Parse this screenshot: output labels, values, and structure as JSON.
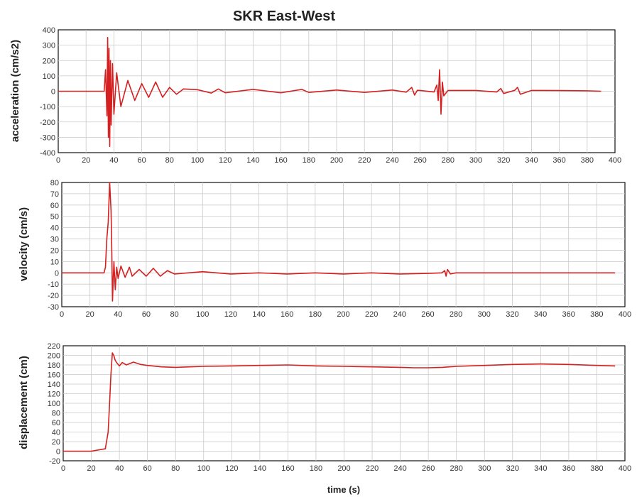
{
  "title": "SKR East-West",
  "colors": {
    "trace": "#d42020",
    "frame": "#111111",
    "grid": "#c9c9c9"
  },
  "chart_data": [
    {
      "type": "line",
      "ylabel": "acceleration (cm/s2)",
      "xlabel": "",
      "xlim": [
        0,
        400
      ],
      "ylim": [
        -400,
        400
      ],
      "xticks": [
        0,
        20,
        40,
        60,
        80,
        100,
        120,
        140,
        160,
        180,
        200,
        220,
        240,
        260,
        280,
        300,
        320,
        340,
        360,
        380,
        400
      ],
      "yticks": [
        -400,
        -300,
        -200,
        -100,
        0,
        100,
        200,
        300,
        400
      ],
      "grid": true,
      "series": [
        {
          "x": [
            0,
            33,
            34,
            35,
            35.5,
            36,
            36.5,
            37,
            37.5,
            38,
            39,
            40,
            42,
            45,
            50,
            55,
            60,
            65,
            70,
            75,
            80,
            85,
            90,
            100,
            110,
            115,
            120,
            140,
            160,
            175,
            180,
            200,
            220,
            240,
            250,
            254,
            256,
            258,
            260,
            270,
            272,
            273,
            274,
            275,
            276,
            277,
            280,
            300,
            315,
            318,
            320,
            328,
            330,
            332,
            340,
            360,
            380,
            390
          ],
          "y": [
            0,
            0,
            140,
            -160,
            350,
            -300,
            280,
            -360,
            200,
            -220,
            180,
            -150,
            120,
            -100,
            70,
            -60,
            50,
            -40,
            60,
            -40,
            25,
            -20,
            15,
            10,
            -12,
            15,
            -10,
            12,
            -10,
            12,
            -8,
            8,
            -8,
            8,
            -6,
            25,
            -25,
            6,
            5,
            -5,
            40,
            -60,
            140,
            -150,
            60,
            -30,
            5,
            5,
            -5,
            18,
            -15,
            6,
            25,
            -20,
            5,
            4,
            3,
            0
          ]
        }
      ]
    },
    {
      "type": "line",
      "ylabel": "velocity (cm/s)",
      "xlabel": "",
      "xlim": [
        0,
        400
      ],
      "ylim": [
        -30,
        80
      ],
      "xticks": [
        0,
        20,
        40,
        60,
        80,
        100,
        120,
        140,
        160,
        180,
        200,
        220,
        240,
        260,
        280,
        300,
        320,
        340,
        360,
        380,
        400
      ],
      "yticks": [
        -30,
        -20,
        -10,
        0,
        10,
        20,
        30,
        40,
        50,
        60,
        70,
        80
      ],
      "grid": true,
      "series": [
        {
          "x": [
            0,
            30,
            31,
            32,
            33,
            34,
            35,
            35.5,
            36,
            37,
            38,
            39,
            40,
            42,
            45,
            48,
            50,
            55,
            60,
            65,
            70,
            75,
            80,
            90,
            100,
            120,
            140,
            160,
            180,
            200,
            220,
            240,
            260,
            270,
            272,
            273,
            274,
            276,
            280,
            300,
            320,
            340,
            360,
            380,
            393
          ],
          "y": [
            0,
            0,
            5,
            30,
            45,
            80,
            55,
            20,
            -25,
            10,
            -15,
            5,
            -5,
            6,
            -4,
            5,
            -3,
            3,
            -3,
            4,
            -3,
            2,
            -1,
            0,
            1,
            -1,
            0,
            -1,
            0,
            -1,
            0,
            -1,
            -0.5,
            0,
            2,
            -3,
            3,
            -1,
            0,
            0,
            0,
            0,
            0,
            0,
            0
          ]
        }
      ]
    },
    {
      "type": "line",
      "ylabel": "displacement (cm)",
      "xlabel": "time (s)",
      "xlim": [
        0,
        400
      ],
      "ylim": [
        -20,
        220
      ],
      "xticks": [
        0,
        20,
        40,
        60,
        80,
        100,
        120,
        140,
        160,
        180,
        200,
        220,
        240,
        260,
        280,
        300,
        320,
        340,
        360,
        380,
        400
      ],
      "yticks": [
        -20,
        0,
        20,
        40,
        60,
        80,
        100,
        120,
        140,
        160,
        180,
        200,
        220
      ],
      "grid": true,
      "series": [
        {
          "x": [
            0,
            20,
            30,
            32,
            33,
            34,
            35,
            36,
            37,
            38,
            40,
            42,
            45,
            50,
            55,
            60,
            70,
            80,
            90,
            100,
            120,
            140,
            160,
            180,
            200,
            220,
            240,
            250,
            260,
            270,
            280,
            300,
            320,
            340,
            360,
            380,
            393
          ],
          "y": [
            0,
            0,
            5,
            40,
            100,
            160,
            205,
            200,
            190,
            185,
            178,
            185,
            180,
            186,
            181,
            179,
            176,
            175,
            176,
            177,
            178,
            179,
            180,
            178,
            177,
            176,
            175,
            174,
            174,
            175,
            177,
            179,
            181,
            182,
            181,
            179,
            178
          ]
        }
      ]
    }
  ]
}
